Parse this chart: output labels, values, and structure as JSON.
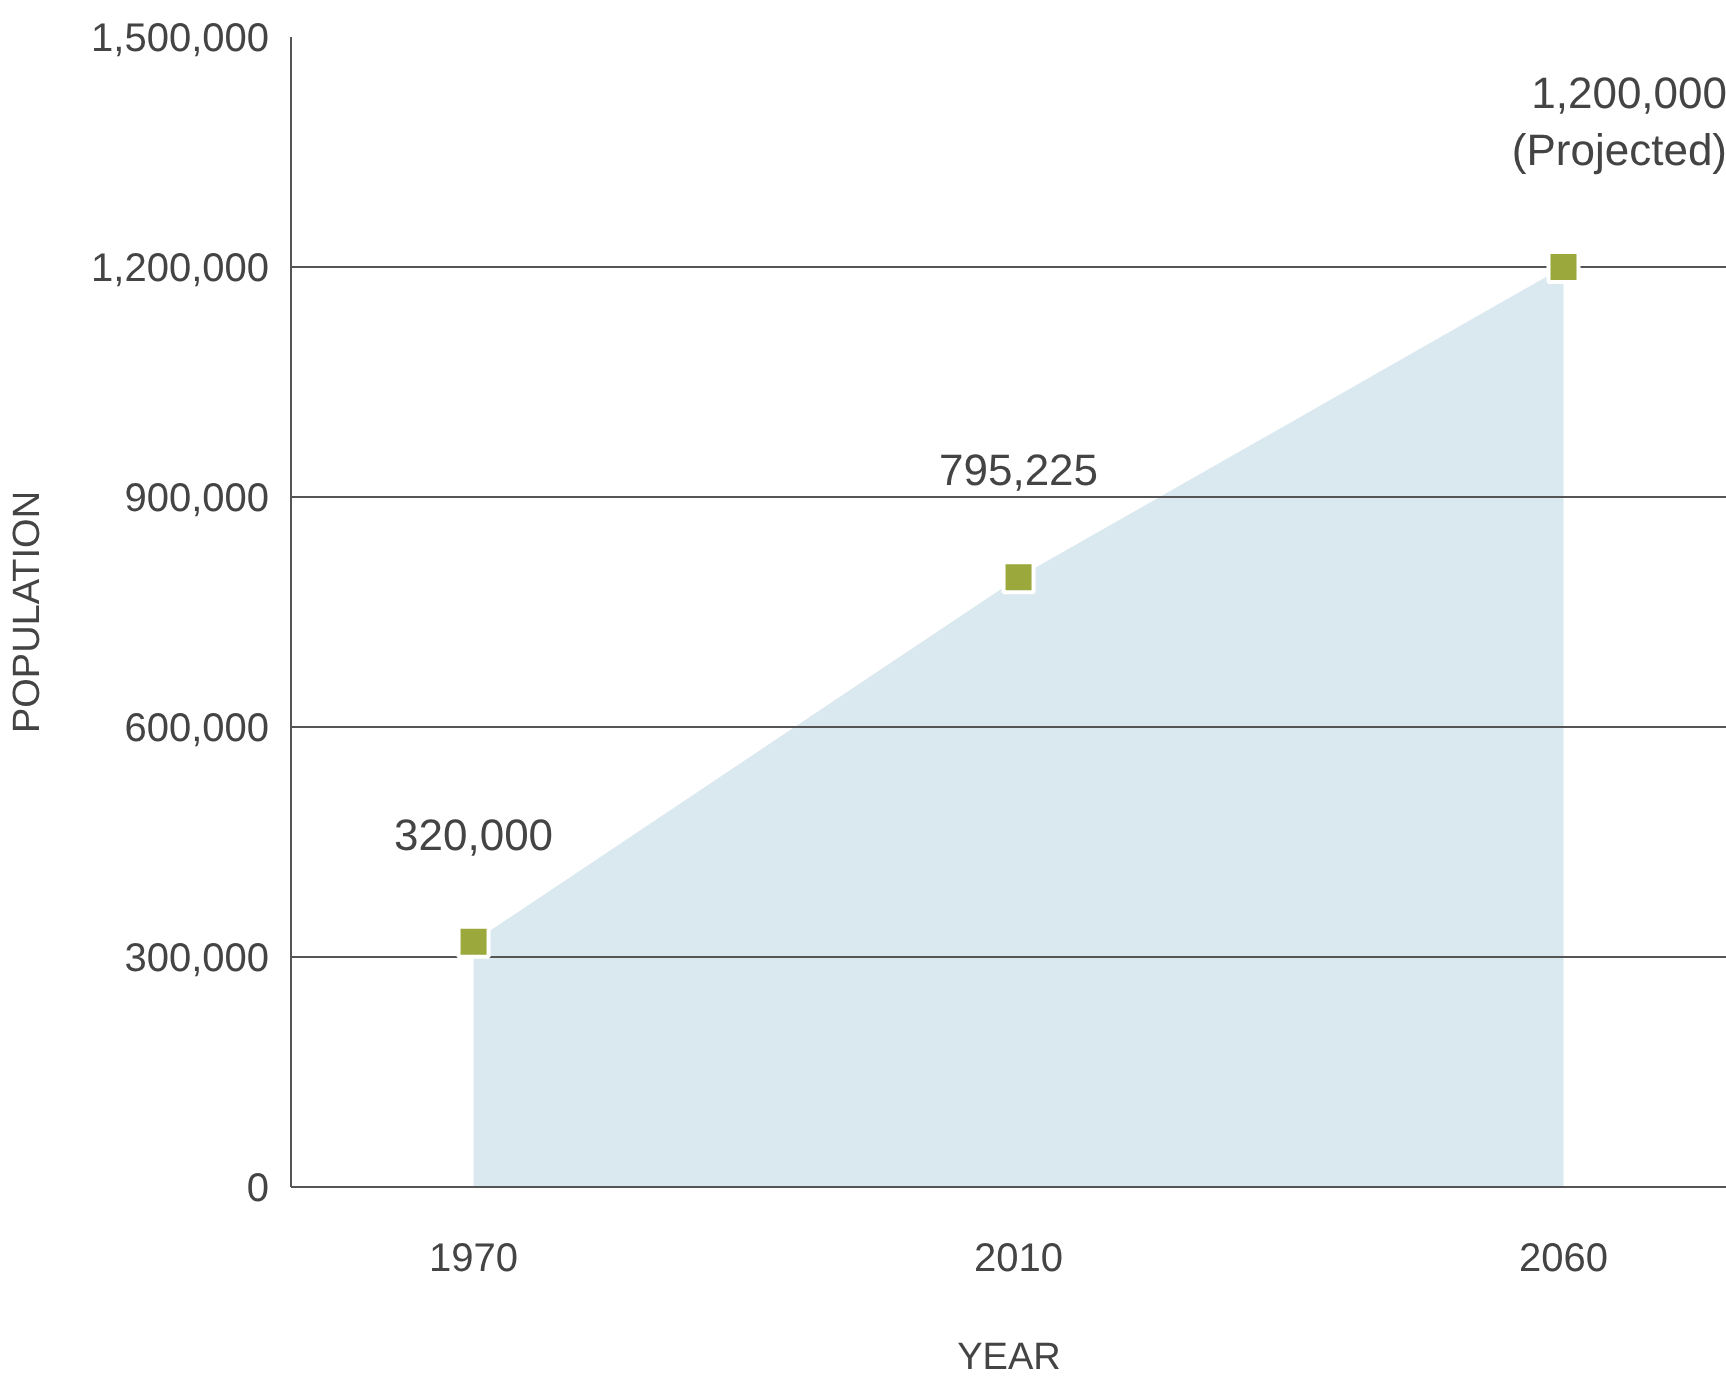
{
  "chart_data": {
    "type": "area",
    "categories": [
      "1970",
      "2010",
      "2060"
    ],
    "series": [
      {
        "color": "#dae8ef",
        "marker": "none",
        "values": [
          320000,
          795225,
          1200000
        ]
      },
      {
        "type": "scatter",
        "marker": "square",
        "color": "#9aa83c",
        "values": [
          320000,
          795225,
          1200000
        ],
        "value_labels": [
          "320,000",
          "795,225",
          "1,200,000\n(Projected)"
        ]
      }
    ],
    "xlabel": "YEAR",
    "ylabel": "POPULATION",
    "ylim": [
      0,
      1500000
    ],
    "yticks": [
      {
        "value": 0,
        "label": "0"
      },
      {
        "value": 300000,
        "label": "300,000"
      },
      {
        "value": 600000,
        "label": "600,000"
      },
      {
        "value": 900000,
        "label": "900,000"
      },
      {
        "value": 1200000,
        "label": "1,200,000"
      },
      {
        "value": 1500000,
        "label": "1,500,000"
      }
    ],
    "grid": "y"
  }
}
